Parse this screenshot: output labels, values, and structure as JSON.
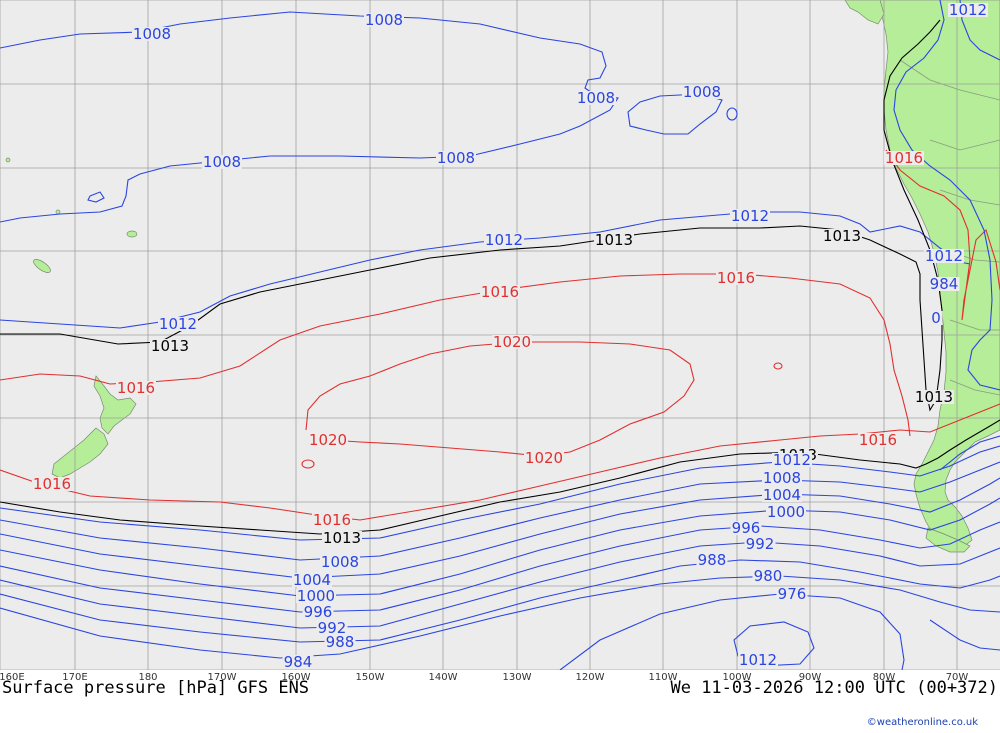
{
  "map": {
    "title_left": "Surface pressure [hPa] GFS ENS",
    "title_right": "We 11-03-2026 12:00 UTC (00+372)",
    "credit": "©weatheronline.co.uk",
    "colors": {
      "ocean": "#ececec",
      "land": "#b5ed98",
      "grid": "#a0a0a0",
      "low_isobar": "#2b45e0",
      "mid_isobar": "#000000",
      "high_isobar": "#e03030"
    },
    "longitude_labels": [
      "160E",
      "170E",
      "180",
      "170W",
      "160W",
      "150W",
      "140W",
      "130W",
      "120W",
      "110W",
      "100W",
      "90W",
      "80W",
      "70W"
    ],
    "isobar_labels": [
      {
        "text": "1008",
        "color": "blue"
      },
      {
        "text": "1008",
        "color": "blue"
      },
      {
        "text": "1008",
        "color": "blue"
      },
      {
        "text": "1008",
        "color": "blue"
      },
      {
        "text": "1008",
        "color": "blue"
      },
      {
        "text": "1008",
        "color": "blue"
      },
      {
        "text": "1012",
        "color": "blue"
      },
      {
        "text": "1012",
        "color": "blue"
      },
      {
        "text": "1012",
        "color": "blue"
      },
      {
        "text": "1012",
        "color": "blue"
      },
      {
        "text": "1012",
        "color": "blue"
      },
      {
        "text": "1013",
        "color": "black"
      },
      {
        "text": "1013",
        "color": "black"
      },
      {
        "text": "1013",
        "color": "black"
      },
      {
        "text": "1013",
        "color": "black"
      },
      {
        "text": "1013",
        "color": "black"
      },
      {
        "text": "1013",
        "color": "black"
      },
      {
        "text": "1016",
        "color": "red"
      },
      {
        "text": "1016",
        "color": "red"
      },
      {
        "text": "1016",
        "color": "red"
      },
      {
        "text": "1016",
        "color": "red"
      },
      {
        "text": "1016",
        "color": "red"
      },
      {
        "text": "1016",
        "color": "red"
      },
      {
        "text": "1016",
        "color": "red"
      },
      {
        "text": "1020",
        "color": "red"
      },
      {
        "text": "1020",
        "color": "red"
      },
      {
        "text": "1020",
        "color": "red"
      },
      {
        "text": "1012",
        "color": "blue"
      },
      {
        "text": "1008",
        "color": "blue"
      },
      {
        "text": "1004",
        "color": "blue"
      },
      {
        "text": "1000",
        "color": "blue"
      },
      {
        "text": "996",
        "color": "blue"
      },
      {
        "text": "992",
        "color": "blue"
      },
      {
        "text": "988",
        "color": "blue"
      },
      {
        "text": "984",
        "color": "blue"
      },
      {
        "text": "980",
        "color": "blue"
      },
      {
        "text": "976",
        "color": "blue"
      },
      {
        "text": "1012",
        "color": "blue"
      },
      {
        "text": "1008",
        "color": "blue"
      },
      {
        "text": "1004",
        "color": "blue"
      },
      {
        "text": "1000",
        "color": "blue"
      },
      {
        "text": "996",
        "color": "blue"
      },
      {
        "text": "992",
        "color": "blue"
      },
      {
        "text": "988",
        "color": "blue"
      },
      {
        "text": "984",
        "color": "blue"
      },
      {
        "text": "0",
        "color": "blue"
      },
      {
        "text": "0",
        "color": "blue"
      }
    ]
  }
}
